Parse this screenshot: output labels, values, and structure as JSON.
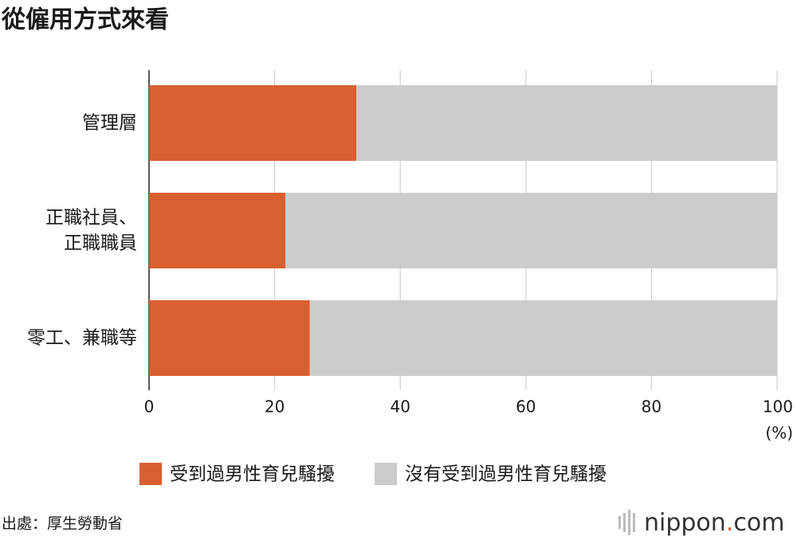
{
  "chart_data": {
    "type": "stacked-bar-horizontal",
    "title": "從僱用方式來看",
    "categories": [
      [
        "管理層"
      ],
      [
        "正職社員、",
        "正職職員"
      ],
      [
        "零工、兼職等"
      ]
    ],
    "series": [
      {
        "name": "受到過男性育兒騷擾",
        "color": "#d95f32",
        "values": [
          33,
          21.7,
          25.6
        ]
      },
      {
        "name": "沒有受到過男性育兒騷擾",
        "color": "#cccccc",
        "values": [
          67,
          78.3,
          74.4
        ]
      }
    ],
    "xlim": [
      0,
      100
    ],
    "xticks": [
      0,
      20,
      40,
      60,
      80,
      100
    ],
    "x_unit": "(%)",
    "grid": true,
    "source": "出處：厚生勞動省",
    "logo": {
      "name": "nippon",
      "dot": ".",
      "suffix": "com"
    }
  }
}
